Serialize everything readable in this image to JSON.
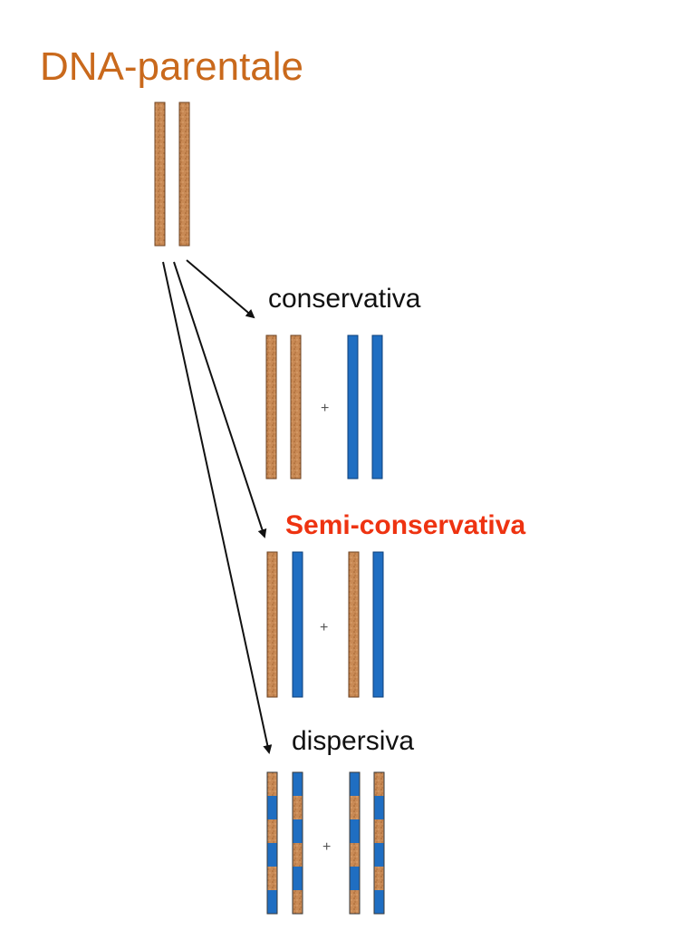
{
  "title": "DNA-parentale",
  "labels": {
    "conservativa": "conservativa",
    "semi_conservativa": "Semi-conservativa",
    "dispersiva": "dispersiva"
  },
  "plus_sign": "+",
  "colors": {
    "title": "#c9691c",
    "highlight": "#ee3311",
    "parental_strand": "#c98a55",
    "new_strand": "#1f6ec2",
    "arrow": "#111111"
  }
}
